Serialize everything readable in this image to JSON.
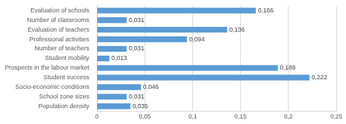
{
  "chart_data": {
    "type": "bar",
    "orientation": "horizontal",
    "categories": [
      "Evaluation of schools",
      "Number of classrooms",
      "Evaluation of teachers",
      "Professional activities",
      "Number of teachers",
      "Student mobility",
      "Prospects in the labour market",
      "Student success",
      "Socio-economic conditions",
      "School zone sizes",
      "Population density"
    ],
    "values": [
      0.166,
      0.031,
      0.136,
      0.094,
      0.031,
      0.013,
      0.189,
      0.222,
      0.046,
      0.031,
      0.035
    ],
    "value_labels": [
      "0,166",
      "0,031",
      "0,136",
      "0,094",
      "0,031",
      "0,013",
      "0,189",
      "0,222",
      "0,046",
      "0,031",
      "0,035"
    ],
    "data_labels": true,
    "color": "#5b9bd5",
    "xlim": [
      0,
      0.25
    ],
    "xticks": [
      0,
      {
        "value": 0.05,
        "label": "0,05"
      },
      {
        "value": 0.1,
        "label": "0,1"
      },
      {
        "value": 0.15,
        "label": "0,15"
      },
      {
        "value": 0.2,
        "label": "0,2"
      },
      {
        "value": 0.25,
        "label": "0,25"
      }
    ],
    "grid": true
  }
}
